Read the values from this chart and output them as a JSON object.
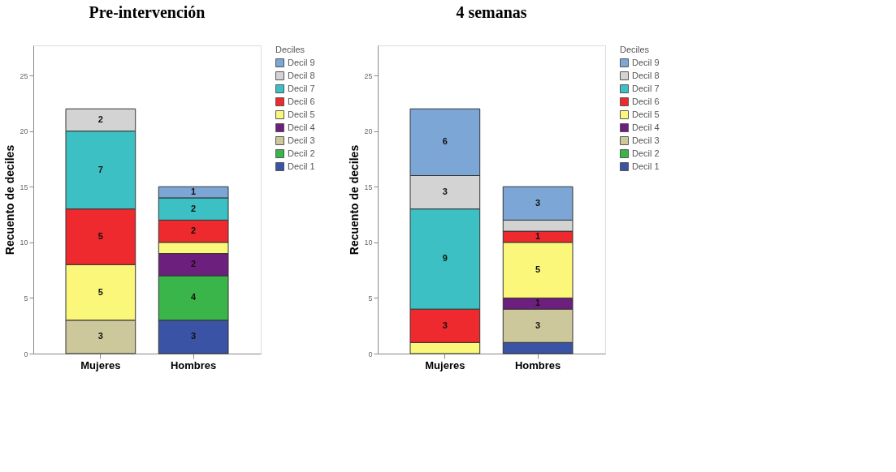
{
  "chart_data": [
    {
      "type": "bar",
      "title": "Pre-intervención",
      "categories": [
        "Mujeres",
        "Hombres"
      ],
      "ylabel": "Recuento de deciles",
      "legend_title": "Deciles",
      "stacked": true,
      "ylim": [
        0,
        27.7
      ],
      "yticks": [
        0,
        5,
        10,
        15,
        20,
        25
      ],
      "grid": false,
      "legend": "right",
      "series": [
        {
          "name": "Decil 1",
          "color": "#3a53a4",
          "values": [
            null,
            3
          ],
          "value_labels": [
            null,
            "3"
          ]
        },
        {
          "name": "Decil 2",
          "color": "#3ab54a",
          "values": [
            null,
            4
          ],
          "value_labels": [
            null,
            "4"
          ]
        },
        {
          "name": "Decil 3",
          "color": "#cdc89c",
          "values": [
            3,
            null
          ],
          "value_labels": [
            "3",
            null
          ]
        },
        {
          "name": "Decil 4",
          "color": "#6d1f7e",
          "values": [
            null,
            2
          ],
          "value_labels": [
            null,
            "2"
          ]
        },
        {
          "name": "Decil 5",
          "color": "#fbf77a",
          "values": [
            5,
            1
          ],
          "value_labels": [
            "5",
            null
          ]
        },
        {
          "name": "Decil 6",
          "color": "#ee2a2e",
          "values": [
            5,
            2
          ],
          "value_labels": [
            "5",
            "2"
          ]
        },
        {
          "name": "Decil 7",
          "color": "#3cc0c3",
          "values": [
            7,
            2
          ],
          "value_labels": [
            "7",
            "2"
          ]
        },
        {
          "name": "Decil 8",
          "color": "#d3d3d3",
          "values": [
            2,
            null
          ],
          "value_labels": [
            "2",
            null
          ]
        },
        {
          "name": "Decil 9",
          "color": "#7ba6d6",
          "values": [
            null,
            1
          ],
          "value_labels": [
            null,
            "1"
          ]
        }
      ]
    },
    {
      "type": "bar",
      "title": "4 semanas",
      "categories": [
        "Mujeres",
        "Hombres"
      ],
      "ylabel": "Recuento de deciles",
      "legend_title": "Deciles",
      "stacked": true,
      "ylim": [
        0,
        27.7
      ],
      "yticks": [
        0,
        5,
        10,
        15,
        20,
        25
      ],
      "grid": false,
      "legend": "right",
      "series": [
        {
          "name": "Decil 1",
          "color": "#3a53a4",
          "values": [
            null,
            1
          ],
          "value_labels": [
            null,
            null
          ]
        },
        {
          "name": "Decil 2",
          "color": "#3ab54a",
          "values": [
            null,
            null
          ],
          "value_labels": [
            null,
            null
          ]
        },
        {
          "name": "Decil 3",
          "color": "#cdc89c",
          "values": [
            null,
            3
          ],
          "value_labels": [
            null,
            "3"
          ]
        },
        {
          "name": "Decil 4",
          "color": "#6d1f7e",
          "values": [
            null,
            1
          ],
          "value_labels": [
            null,
            "1"
          ]
        },
        {
          "name": "Decil 5",
          "color": "#fbf77a",
          "values": [
            1,
            5
          ],
          "value_labels": [
            null,
            "5"
          ]
        },
        {
          "name": "Decil 6",
          "color": "#ee2a2e",
          "values": [
            3,
            1
          ],
          "value_labels": [
            "3",
            "1"
          ]
        },
        {
          "name": "Decil 7",
          "color": "#3cc0c3",
          "values": [
            9,
            null
          ],
          "value_labels": [
            "9",
            null
          ]
        },
        {
          "name": "Decil 8",
          "color": "#d3d3d3",
          "values": [
            3,
            1
          ],
          "value_labels": [
            "3",
            null
          ]
        },
        {
          "name": "Decil 9",
          "color": "#7ba6d6",
          "values": [
            6,
            3
          ],
          "value_labels": [
            "6",
            "3"
          ]
        }
      ]
    }
  ]
}
